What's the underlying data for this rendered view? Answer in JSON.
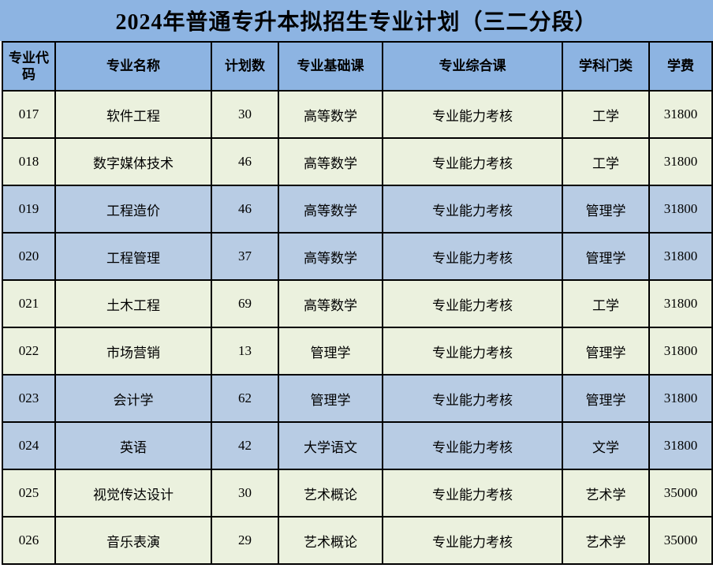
{
  "title": "2024年普通专升本拟招生专业计划（三二分段）",
  "colors": {
    "title_header_bg": "#8DB4E2",
    "row_blue_bg": "#B8CCE4",
    "row_green_bg": "#EBF1DE",
    "border": "#000000",
    "text": "#000000"
  },
  "table": {
    "headers": [
      "专业代码",
      "专业名称",
      "计划数",
      "专业基础课",
      "专业综合课",
      "学科门类",
      "学费"
    ],
    "rows": [
      {
        "code": "017",
        "name": "软件工程",
        "plan": "30",
        "basic": "高等数学",
        "comprehensive": "专业能力考核",
        "discipline": "工学",
        "tuition": "31800"
      },
      {
        "code": "018",
        "name": "数字媒体技术",
        "plan": "46",
        "basic": "高等数学",
        "comprehensive": "专业能力考核",
        "discipline": "工学",
        "tuition": "31800"
      },
      {
        "code": "019",
        "name": "工程造价",
        "plan": "46",
        "basic": "高等数学",
        "comprehensive": "专业能力考核",
        "discipline": "管理学",
        "tuition": "31800"
      },
      {
        "code": "020",
        "name": "工程管理",
        "plan": "37",
        "basic": "高等数学",
        "comprehensive": "专业能力考核",
        "discipline": "管理学",
        "tuition": "31800"
      },
      {
        "code": "021",
        "name": "土木工程",
        "plan": "69",
        "basic": "高等数学",
        "comprehensive": "专业能力考核",
        "discipline": "工学",
        "tuition": "31800"
      },
      {
        "code": "022",
        "name": "市场营销",
        "plan": "13",
        "basic": "管理学",
        "comprehensive": "专业能力考核",
        "discipline": "管理学",
        "tuition": "31800"
      },
      {
        "code": "023",
        "name": "会计学",
        "plan": "62",
        "basic": "管理学",
        "comprehensive": "专业能力考核",
        "discipline": "管理学",
        "tuition": "31800"
      },
      {
        "code": "024",
        "name": "英语",
        "plan": "42",
        "basic": "大学语文",
        "comprehensive": "专业能力考核",
        "discipline": "文学",
        "tuition": "31800"
      },
      {
        "code": "025",
        "name": "视觉传达设计",
        "plan": "30",
        "basic": "艺术概论",
        "comprehensive": "专业能力考核",
        "discipline": "艺术学",
        "tuition": "35000"
      },
      {
        "code": "026",
        "name": "音乐表演",
        "plan": "29",
        "basic": "艺术概论",
        "comprehensive": "专业能力考核",
        "discipline": "艺术学",
        "tuition": "35000"
      }
    ]
  }
}
